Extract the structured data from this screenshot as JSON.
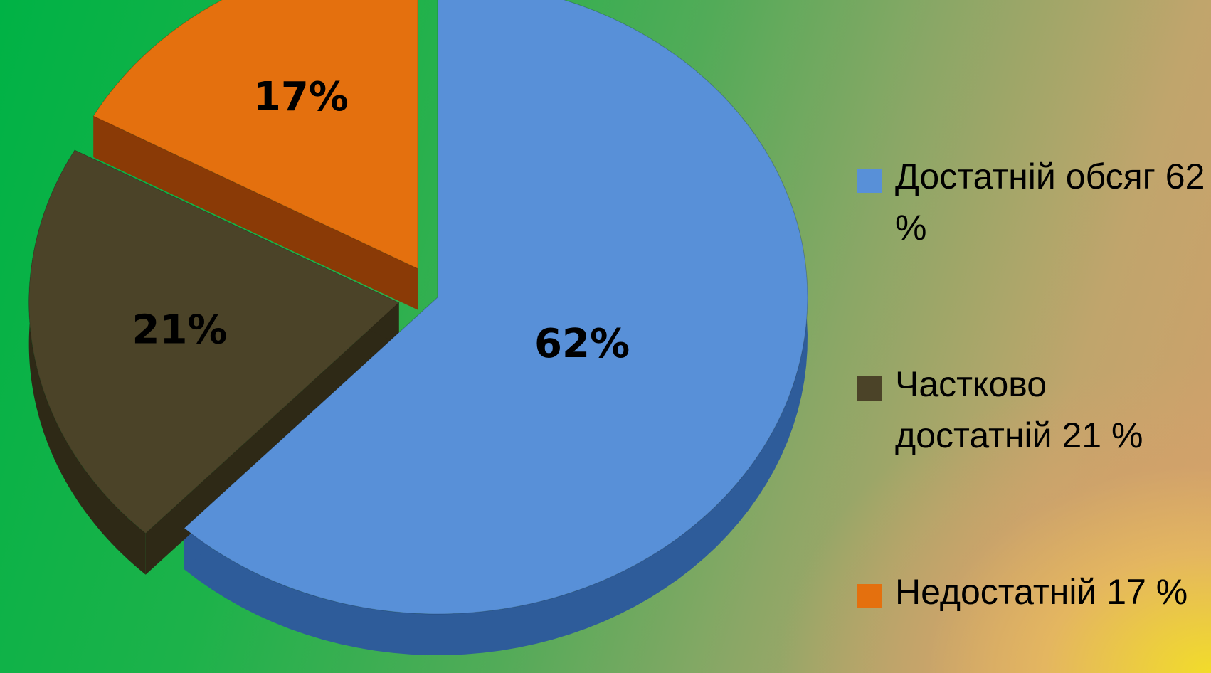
{
  "chart_data": {
    "type": "pie",
    "style": "3d-exploded",
    "start_angle": "12 o'clock",
    "direction": "clockwise",
    "slices": [
      {
        "label": "Достатній обсяг 62 %",
        "value": 62,
        "display": "62%",
        "color": "#5890d8",
        "side_color": "#2e5c9a"
      },
      {
        "label": "Частково достатній 21 %",
        "value": 21,
        "display": "21%",
        "color": "#4b4328",
        "side_color": "#2e2916"
      },
      {
        "label": "Недостатній 17 %",
        "value": 17,
        "display": "17%",
        "color": "#e4700e",
        "side_color": "#8a3a06"
      }
    ],
    "legend_position": "right"
  }
}
